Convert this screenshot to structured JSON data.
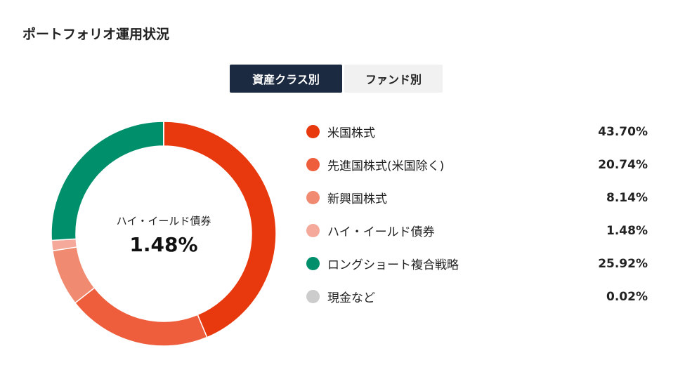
{
  "section": {
    "title": "ポートフォリオ運用状況"
  },
  "tabs": [
    {
      "label": "資産クラス別",
      "active": true
    },
    {
      "label": "ファンド別",
      "active": false
    }
  ],
  "center": {
    "label": "ハイ・イールド債券",
    "value": "1.48%"
  },
  "colors": {
    "us_equity": "#e8380d",
    "developed_equity": "#ee5e3d",
    "emerging_equity": "#f08a70",
    "high_yield": "#f4a99a",
    "long_short": "#008f6b",
    "cash": "#cccccc"
  },
  "chart_data": {
    "type": "pie",
    "donut": true,
    "categories": [
      "米国株式",
      "先進国株式(米国除く)",
      "新興国株式",
      "ハイ・イールド債券",
      "ロングショート複合戦略",
      "現金など"
    ],
    "values": [
      43.7,
      20.74,
      8.14,
      1.48,
      25.92,
      0.02
    ],
    "labels": [
      "43.70%",
      "20.74%",
      "8.14%",
      "1.48%",
      "25.92%",
      "0.02%"
    ],
    "colors": [
      "#e8380d",
      "#ee5e3d",
      "#f08a70",
      "#f4a99a",
      "#008f6b",
      "#cccccc"
    ]
  }
}
